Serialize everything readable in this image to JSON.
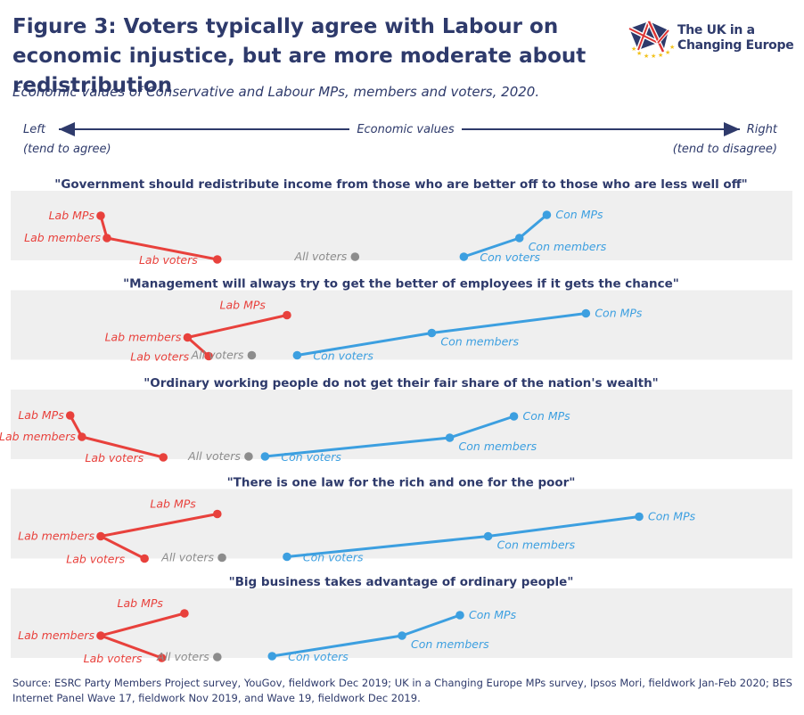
{
  "header": {
    "title": "Figure 3: Voters typically agree with Labour on economic injustice, but are more moderate about redistribution",
    "subtitle": "Economic values of Conservative and Labour MPs, members and voters, 2020."
  },
  "logo": {
    "line1": "The UK in a",
    "line2": "Changing Europe",
    "icon": "union-flag-stars-icon"
  },
  "axis": {
    "left_label": "Left",
    "left_sub": "(tend to agree)",
    "center_label": "Economic values",
    "right_label": "Right",
    "right_sub": "(tend to disagree)"
  },
  "colors": {
    "labour": "#e8413c",
    "conservative": "#3c9fe0",
    "all_voters": "#8c8c8c",
    "band": "#efefef",
    "text": "#2e3a6b"
  },
  "chart_data": {
    "type": "scatter",
    "xlabel": "Economic values",
    "xlim": [
      0,
      100
    ],
    "series_names": {
      "lab_mps": "Lab MPs",
      "lab_members": "Lab members",
      "lab_voters": "Lab voters",
      "all_voters": "All voters",
      "con_voters": "Con voters",
      "con_members": "Con members",
      "con_mps": "Con MPs"
    },
    "panels": [
      {
        "statement": "\"Government should redistribute income from those who are better off to those who are less well off\"",
        "values": {
          "lab_mps": 11.5,
          "lab_members": 12.3,
          "lab_voters": 26.4,
          "all_voters": 44.0,
          "con_voters": 57.9,
          "con_members": 65.0,
          "con_mps": 68.5
        }
      },
      {
        "statement": "\"Management will always try to get the better of employees if it gets the chance\"",
        "values": {
          "lab_mps": 35.3,
          "lab_members": 22.6,
          "lab_voters": 25.3,
          "all_voters": 30.8,
          "con_voters": 36.6,
          "con_members": 53.8,
          "con_mps": 73.5
        }
      },
      {
        "statement": "\"Ordinary working people do not get their fair share of the nation's wealth\"",
        "values": {
          "lab_mps": 7.6,
          "lab_members": 9.1,
          "lab_voters": 19.5,
          "all_voters": 30.4,
          "con_voters": 32.5,
          "con_members": 56.1,
          "con_mps": 64.3
        }
      },
      {
        "statement": "\"There is one law for the rich and one for the poor\"",
        "values": {
          "lab_mps": 26.4,
          "lab_members": 11.5,
          "lab_voters": 17.1,
          "all_voters": 27.0,
          "con_voters": 35.3,
          "con_members": 61.0,
          "con_mps": 80.3
        }
      },
      {
        "statement": "\"Big business takes advantage of ordinary people\"",
        "values": {
          "lab_mps": 22.2,
          "lab_members": 11.5,
          "lab_voters": 19.3,
          "all_voters": 26.4,
          "con_voters": 33.4,
          "con_members": 50.0,
          "con_mps": 57.4
        }
      }
    ]
  },
  "source": "Source: ESRC Party Members Project survey, YouGov, fieldwork Dec 2019; UK in a Changing Europe MPs survey, Ipsos Mori, fieldwork Jan-Feb 2020; BES Internet Panel Wave 17, fieldwork Nov 2019, and Wave 19, fieldwork Dec 2019."
}
